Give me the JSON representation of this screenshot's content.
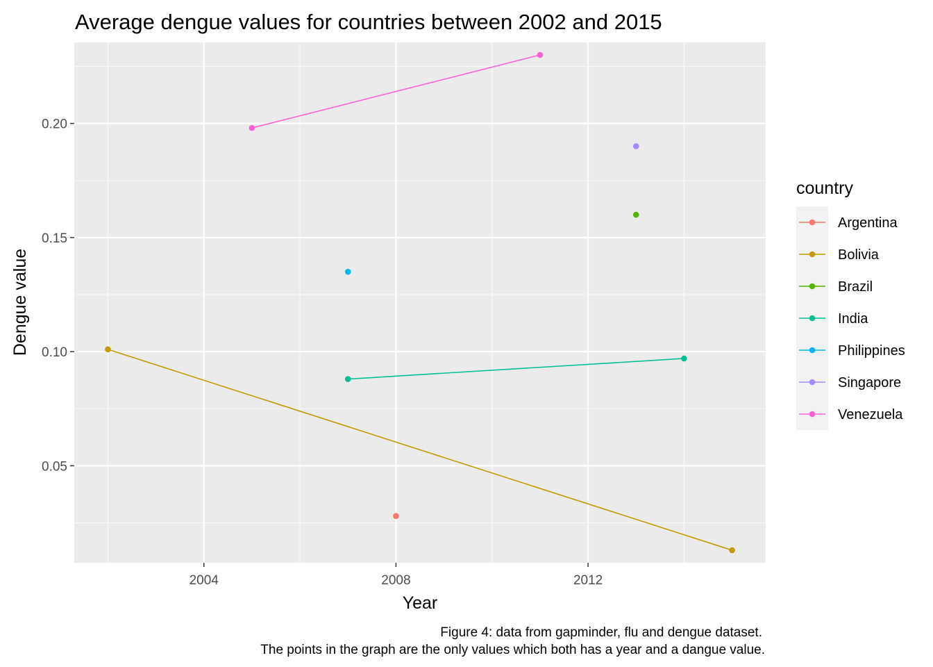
{
  "chart_data": {
    "type": "line",
    "title": "Average dengue values for countries between 2002 and 2015",
    "xlabel": "Year",
    "ylabel": "Dengue value",
    "xlim": [
      2001.3,
      2015.7
    ],
    "ylim": [
      0.0075,
      0.2355
    ],
    "x_ticks": [
      2004,
      2008,
      2012
    ],
    "x_tick_labels": [
      "2004",
      "2008",
      "2012"
    ],
    "y_ticks": [
      0.05,
      0.1,
      0.15,
      0.2
    ],
    "y_tick_labels": [
      "0.05",
      "0.10",
      "0.15",
      "0.20"
    ],
    "grid": true,
    "legend_title": "country",
    "legend_position": "right",
    "series": [
      {
        "name": "Argentina",
        "color": "#F8766D",
        "points": [
          {
            "x": 2008,
            "y": 0.028
          }
        ]
      },
      {
        "name": "Bolivia",
        "color": "#C49A00",
        "points": [
          {
            "x": 2002,
            "y": 0.101
          },
          {
            "x": 2015,
            "y": 0.013
          }
        ]
      },
      {
        "name": "Brazil",
        "color": "#53B400",
        "points": [
          {
            "x": 2013,
            "y": 0.16
          }
        ]
      },
      {
        "name": "India",
        "color": "#00C094",
        "points": [
          {
            "x": 2007,
            "y": 0.088
          },
          {
            "x": 2014,
            "y": 0.097
          }
        ]
      },
      {
        "name": "Philippines",
        "color": "#00B6EB",
        "points": [
          {
            "x": 2007,
            "y": 0.135
          }
        ]
      },
      {
        "name": "Singapore",
        "color": "#A58AFF",
        "points": [
          {
            "x": 2013,
            "y": 0.19
          }
        ]
      },
      {
        "name": "Venezuela",
        "color": "#FB61D7",
        "points": [
          {
            "x": 2005,
            "y": 0.198
          },
          {
            "x": 2011,
            "y": 0.23
          }
        ]
      }
    ],
    "caption": [
      "Figure 4: data from gapminder, flu and dengue dataset.",
      "The points in the graph are the only values which both has a year and a dangue value."
    ]
  }
}
